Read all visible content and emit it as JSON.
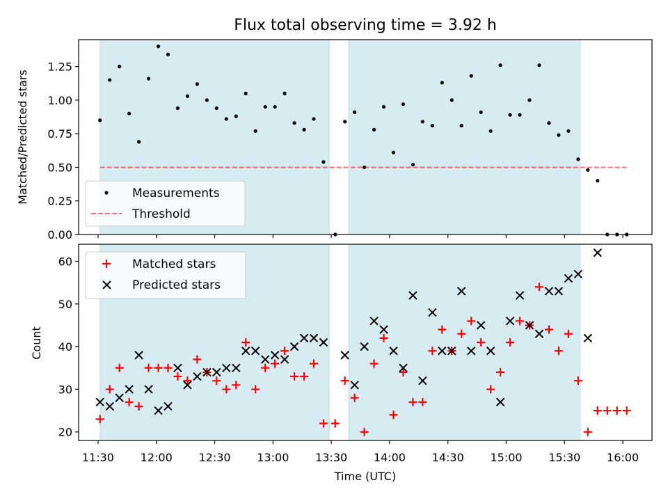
{
  "title": "Flux total observing time = 3.92 h",
  "colors": {
    "span": "#add8e6",
    "marker_measure": "#000000",
    "threshold": "#ff0000",
    "matched": "#ff0000",
    "predicted": "#000000"
  },
  "chart_data": [
    {
      "type": "scatter",
      "ylabel": "Matched/Predicted stars",
      "ylim": [
        0,
        1.45
      ],
      "yticks": [
        "0.00",
        "0.25",
        "0.50",
        "0.75",
        "1.00",
        "1.25"
      ],
      "xlim": [
        "11:20",
        "16:15"
      ],
      "xticks": [
        "11:30",
        "12:00",
        "12:30",
        "13:00",
        "13:30",
        "14:00",
        "14:30",
        "15:00",
        "15:30",
        "16:00"
      ],
      "xticklabels_shown": false,
      "shaded_spans": [
        [
          "11:31",
          "13:29"
        ],
        [
          "13:39",
          "15:38"
        ]
      ],
      "legend": {
        "position": "lower-left",
        "entries": [
          "Measurements",
          "Threshold"
        ]
      },
      "threshold": {
        "name": "Threshold",
        "value": 0.5,
        "x_range": [
          "11:31",
          "16:03"
        ]
      },
      "series": [
        {
          "name": "Measurements",
          "marker": "dot",
          "points": [
            [
              "11:31",
              0.85
            ],
            [
              "11:36",
              1.15
            ],
            [
              "11:41",
              1.25
            ],
            [
              "11:46",
              0.9
            ],
            [
              "11:51",
              0.69
            ],
            [
              "11:56",
              1.16
            ],
            [
              "12:01",
              1.4
            ],
            [
              "12:06",
              1.34
            ],
            [
              "12:11",
              0.94
            ],
            [
              "12:16",
              1.03
            ],
            [
              "12:21",
              1.12
            ],
            [
              "12:26",
              1.0
            ],
            [
              "12:31",
              0.94
            ],
            [
              "12:36",
              0.86
            ],
            [
              "12:41",
              0.88
            ],
            [
              "12:46",
              1.05
            ],
            [
              "12:51",
              0.77
            ],
            [
              "12:56",
              0.95
            ],
            [
              "13:01",
              0.95
            ],
            [
              "13:06",
              1.05
            ],
            [
              "13:11",
              0.83
            ],
            [
              "13:16",
              0.78
            ],
            [
              "13:21",
              0.86
            ],
            [
              "13:26",
              0.54
            ],
            [
              "13:32",
              0.0
            ],
            [
              "13:37",
              0.84
            ],
            [
              "13:42",
              0.91
            ],
            [
              "13:47",
              0.5
            ],
            [
              "13:52",
              0.78
            ],
            [
              "13:57",
              0.95
            ],
            [
              "14:02",
              0.61
            ],
            [
              "14:07",
              0.97
            ],
            [
              "14:12",
              0.52
            ],
            [
              "14:17",
              0.84
            ],
            [
              "14:22",
              0.81
            ],
            [
              "14:27",
              1.13
            ],
            [
              "14:32",
              1.0
            ],
            [
              "14:37",
              0.81
            ],
            [
              "14:42",
              1.18
            ],
            [
              "14:47",
              0.91
            ],
            [
              "14:52",
              0.77
            ],
            [
              "14:57",
              1.26
            ],
            [
              "15:02",
              0.89
            ],
            [
              "15:07",
              0.89
            ],
            [
              "15:12",
              1.0
            ],
            [
              "15:17",
              1.26
            ],
            [
              "15:22",
              0.83
            ],
            [
              "15:27",
              0.74
            ],
            [
              "15:32",
              0.77
            ],
            [
              "15:37",
              0.56
            ],
            [
              "15:42",
              0.48
            ],
            [
              "15:47",
              0.4
            ],
            [
              "15:52",
              0.0
            ],
            [
              "15:57",
              0.0
            ],
            [
              "16:02",
              0.0
            ]
          ]
        }
      ]
    },
    {
      "type": "scatter",
      "xlabel": "Time (UTC)",
      "ylabel": "Count",
      "ylim": [
        18,
        64
      ],
      "yticks": [
        "20",
        "30",
        "40",
        "50",
        "60"
      ],
      "xlim": [
        "11:20",
        "16:15"
      ],
      "xticks": [
        "11:30",
        "12:00",
        "12:30",
        "13:00",
        "13:30",
        "14:00",
        "14:30",
        "15:00",
        "15:30",
        "16:00"
      ],
      "shaded_spans": [
        [
          "11:31",
          "13:29"
        ],
        [
          "13:39",
          "15:38"
        ]
      ],
      "legend": {
        "position": "upper-left",
        "entries": [
          "Matched stars",
          "Predicted stars"
        ]
      },
      "series": [
        {
          "name": "Matched stars",
          "marker": "plus",
          "points": [
            [
              "11:31",
              23
            ],
            [
              "11:36",
              30
            ],
            [
              "11:41",
              35
            ],
            [
              "11:46",
              27
            ],
            [
              "11:51",
              26
            ],
            [
              "11:56",
              35
            ],
            [
              "12:01",
              35
            ],
            [
              "12:06",
              35
            ],
            [
              "12:11",
              33
            ],
            [
              "12:16",
              32
            ],
            [
              "12:21",
              37
            ],
            [
              "12:26",
              34
            ],
            [
              "12:31",
              32
            ],
            [
              "12:36",
              30
            ],
            [
              "12:41",
              31
            ],
            [
              "12:46",
              41
            ],
            [
              "12:51",
              30
            ],
            [
              "12:56",
              35
            ],
            [
              "13:01",
              36
            ],
            [
              "13:06",
              39
            ],
            [
              "13:11",
              33
            ],
            [
              "13:16",
              33
            ],
            [
              "13:21",
              36
            ],
            [
              "13:26",
              22
            ],
            [
              "13:32",
              22
            ],
            [
              "13:37",
              32
            ],
            [
              "13:42",
              28
            ],
            [
              "13:47",
              20
            ],
            [
              "13:52",
              36
            ],
            [
              "13:57",
              42
            ],
            [
              "14:02",
              24
            ],
            [
              "14:07",
              34
            ],
            [
              "14:12",
              27
            ],
            [
              "14:17",
              27
            ],
            [
              "14:22",
              39
            ],
            [
              "14:27",
              44
            ],
            [
              "14:32",
              39
            ],
            [
              "14:37",
              43
            ],
            [
              "14:42",
              46
            ],
            [
              "14:47",
              41
            ],
            [
              "14:52",
              30
            ],
            [
              "14:57",
              34
            ],
            [
              "15:02",
              41
            ],
            [
              "15:07",
              46
            ],
            [
              "15:12",
              45
            ],
            [
              "15:17",
              54
            ],
            [
              "15:22",
              44
            ],
            [
              "15:27",
              39
            ],
            [
              "15:32",
              43
            ],
            [
              "15:37",
              32
            ],
            [
              "15:42",
              20
            ],
            [
              "15:47",
              25
            ],
            [
              "15:52",
              25
            ],
            [
              "15:57",
              25
            ],
            [
              "16:02",
              25
            ]
          ]
        },
        {
          "name": "Predicted stars",
          "marker": "x",
          "points": [
            [
              "11:31",
              27
            ],
            [
              "11:36",
              26
            ],
            [
              "11:41",
              28
            ],
            [
              "11:46",
              30
            ],
            [
              "11:51",
              38
            ],
            [
              "11:56",
              30
            ],
            [
              "12:01",
              25
            ],
            [
              "12:06",
              26
            ],
            [
              "12:11",
              35
            ],
            [
              "12:16",
              31
            ],
            [
              "12:21",
              33
            ],
            [
              "12:26",
              34
            ],
            [
              "12:31",
              34
            ],
            [
              "12:36",
              35
            ],
            [
              "12:41",
              35
            ],
            [
              "12:46",
              39
            ],
            [
              "12:51",
              39
            ],
            [
              "12:56",
              37
            ],
            [
              "13:01",
              38
            ],
            [
              "13:06",
              37
            ],
            [
              "13:11",
              40
            ],
            [
              "13:16",
              42
            ],
            [
              "13:21",
              42
            ],
            [
              "13:26",
              41
            ],
            [
              "13:37",
              38
            ],
            [
              "13:42",
              31
            ],
            [
              "13:47",
              40
            ],
            [
              "13:52",
              46
            ],
            [
              "13:57",
              44
            ],
            [
              "14:02",
              39
            ],
            [
              "14:07",
              35
            ],
            [
              "14:12",
              52
            ],
            [
              "14:17",
              32
            ],
            [
              "14:22",
              48
            ],
            [
              "14:27",
              39
            ],
            [
              "14:32",
              39
            ],
            [
              "14:37",
              53
            ],
            [
              "14:42",
              39
            ],
            [
              "14:47",
              45
            ],
            [
              "14:52",
              39
            ],
            [
              "14:57",
              27
            ],
            [
              "15:02",
              46
            ],
            [
              "15:07",
              52
            ],
            [
              "15:12",
              45
            ],
            [
              "15:17",
              43
            ],
            [
              "15:22",
              53
            ],
            [
              "15:27",
              53
            ],
            [
              "15:32",
              56
            ],
            [
              "15:37",
              57
            ],
            [
              "15:42",
              42
            ],
            [
              "15:47",
              62
            ]
          ]
        }
      ]
    }
  ]
}
